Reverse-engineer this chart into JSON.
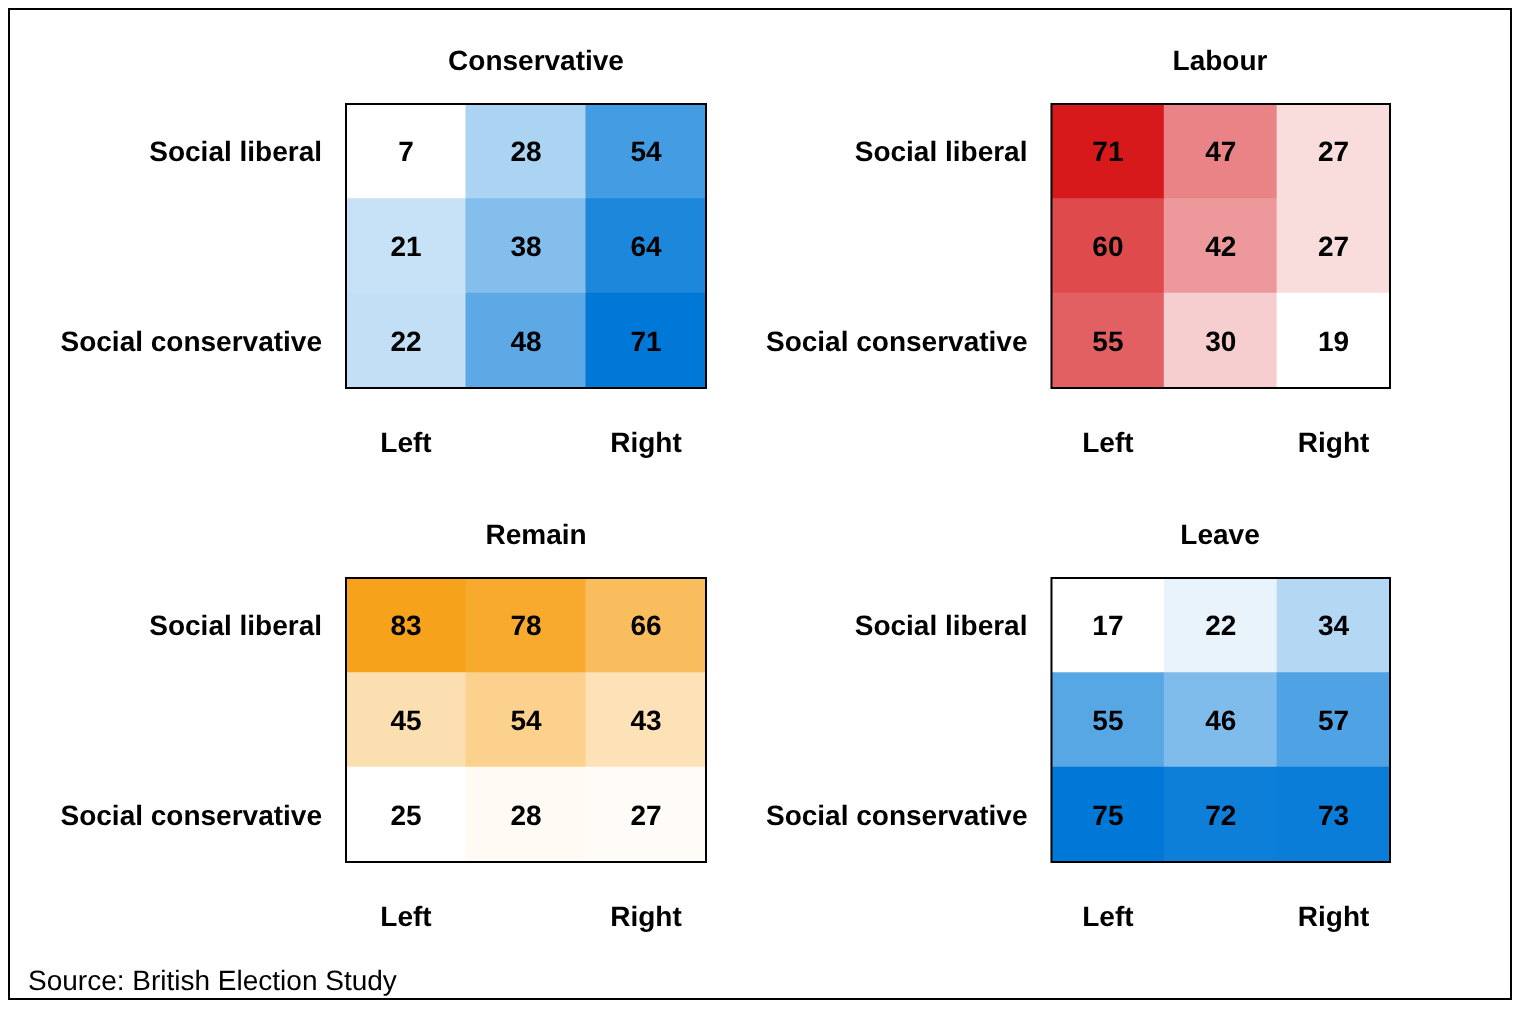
{
  "chart_data": [
    {
      "type": "heatmap",
      "title": "Conservative",
      "categories": [
        "Left",
        null,
        "Right"
      ],
      "y_categories": [
        "Social liberal",
        null,
        "Social conservative"
      ],
      "color": "#0078d7",
      "data_labels": true,
      "cells": [
        [
          7,
          28,
          54
        ],
        [
          21,
          38,
          64
        ],
        [
          22,
          48,
          71
        ]
      ]
    },
    {
      "type": "heatmap",
      "title": "Labour",
      "categories": [
        "Left",
        null,
        "Right"
      ],
      "y_categories": [
        "Social liberal",
        null,
        "Social conservative"
      ],
      "color": "#d7191c",
      "data_labels": true,
      "cells": [
        [
          71,
          47,
          27
        ],
        [
          60,
          42,
          27
        ],
        [
          55,
          30,
          19
        ]
      ]
    },
    {
      "type": "heatmap",
      "title": "Remain",
      "categories": [
        "Left",
        null,
        "Right"
      ],
      "y_categories": [
        "Social liberal",
        null,
        "Social conservative"
      ],
      "color": "#f7a21b",
      "data_labels": true,
      "cells": [
        [
          83,
          78,
          66
        ],
        [
          45,
          54,
          43
        ],
        [
          25,
          28,
          27
        ]
      ],
      "annotations": [
        "Source: British Election Study"
      ]
    },
    {
      "type": "heatmap",
      "title": "Leave",
      "categories": [
        "Left",
        null,
        "Right"
      ],
      "y_categories": [
        "Social liberal",
        null,
        "Social conservative"
      ],
      "color": "#0078d7",
      "data_labels": true,
      "cells": [
        [
          17,
          22,
          34
        ],
        [
          55,
          46,
          57
        ],
        [
          75,
          72,
          73
        ]
      ]
    }
  ]
}
